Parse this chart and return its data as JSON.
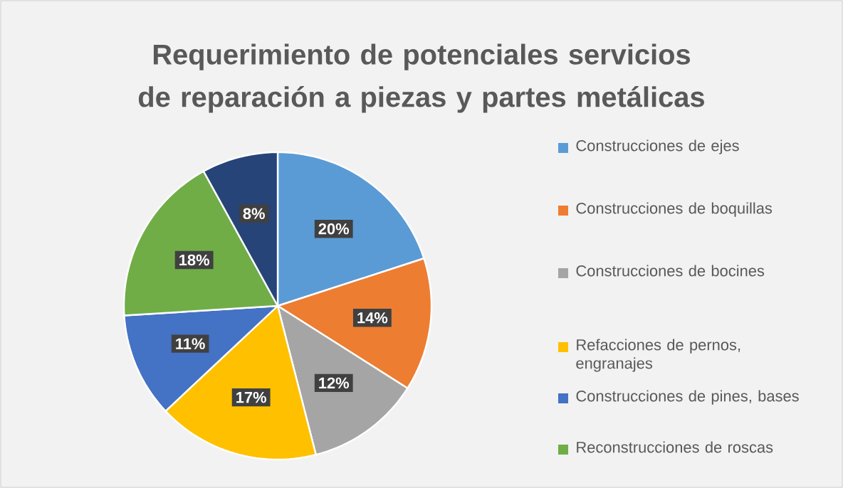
{
  "chart_data": {
    "type": "pie",
    "title": "Requerimiento de potenciales servicios de reparación a piezas y partes metálicas",
    "categories": [
      "Construcciones de ejes",
      "Construcciones de boquillas",
      "Construcciones de bocines",
      "Refacciones de pernos, engranajes",
      "Construcciones de pines, bases",
      "Reconstrucciones de roscas",
      null
    ],
    "values": [
      20,
      14,
      12,
      17,
      11,
      18,
      8
    ],
    "value_labels": [
      "20%",
      "14%",
      "12%",
      "17%",
      "11%",
      "18%",
      "8%"
    ],
    "colors": [
      "#5b9bd5",
      "#ed7d31",
      "#a5a5a5",
      "#ffc000",
      "#4472c4",
      "#70ad47",
      "#264478"
    ],
    "legend": "right"
  }
}
